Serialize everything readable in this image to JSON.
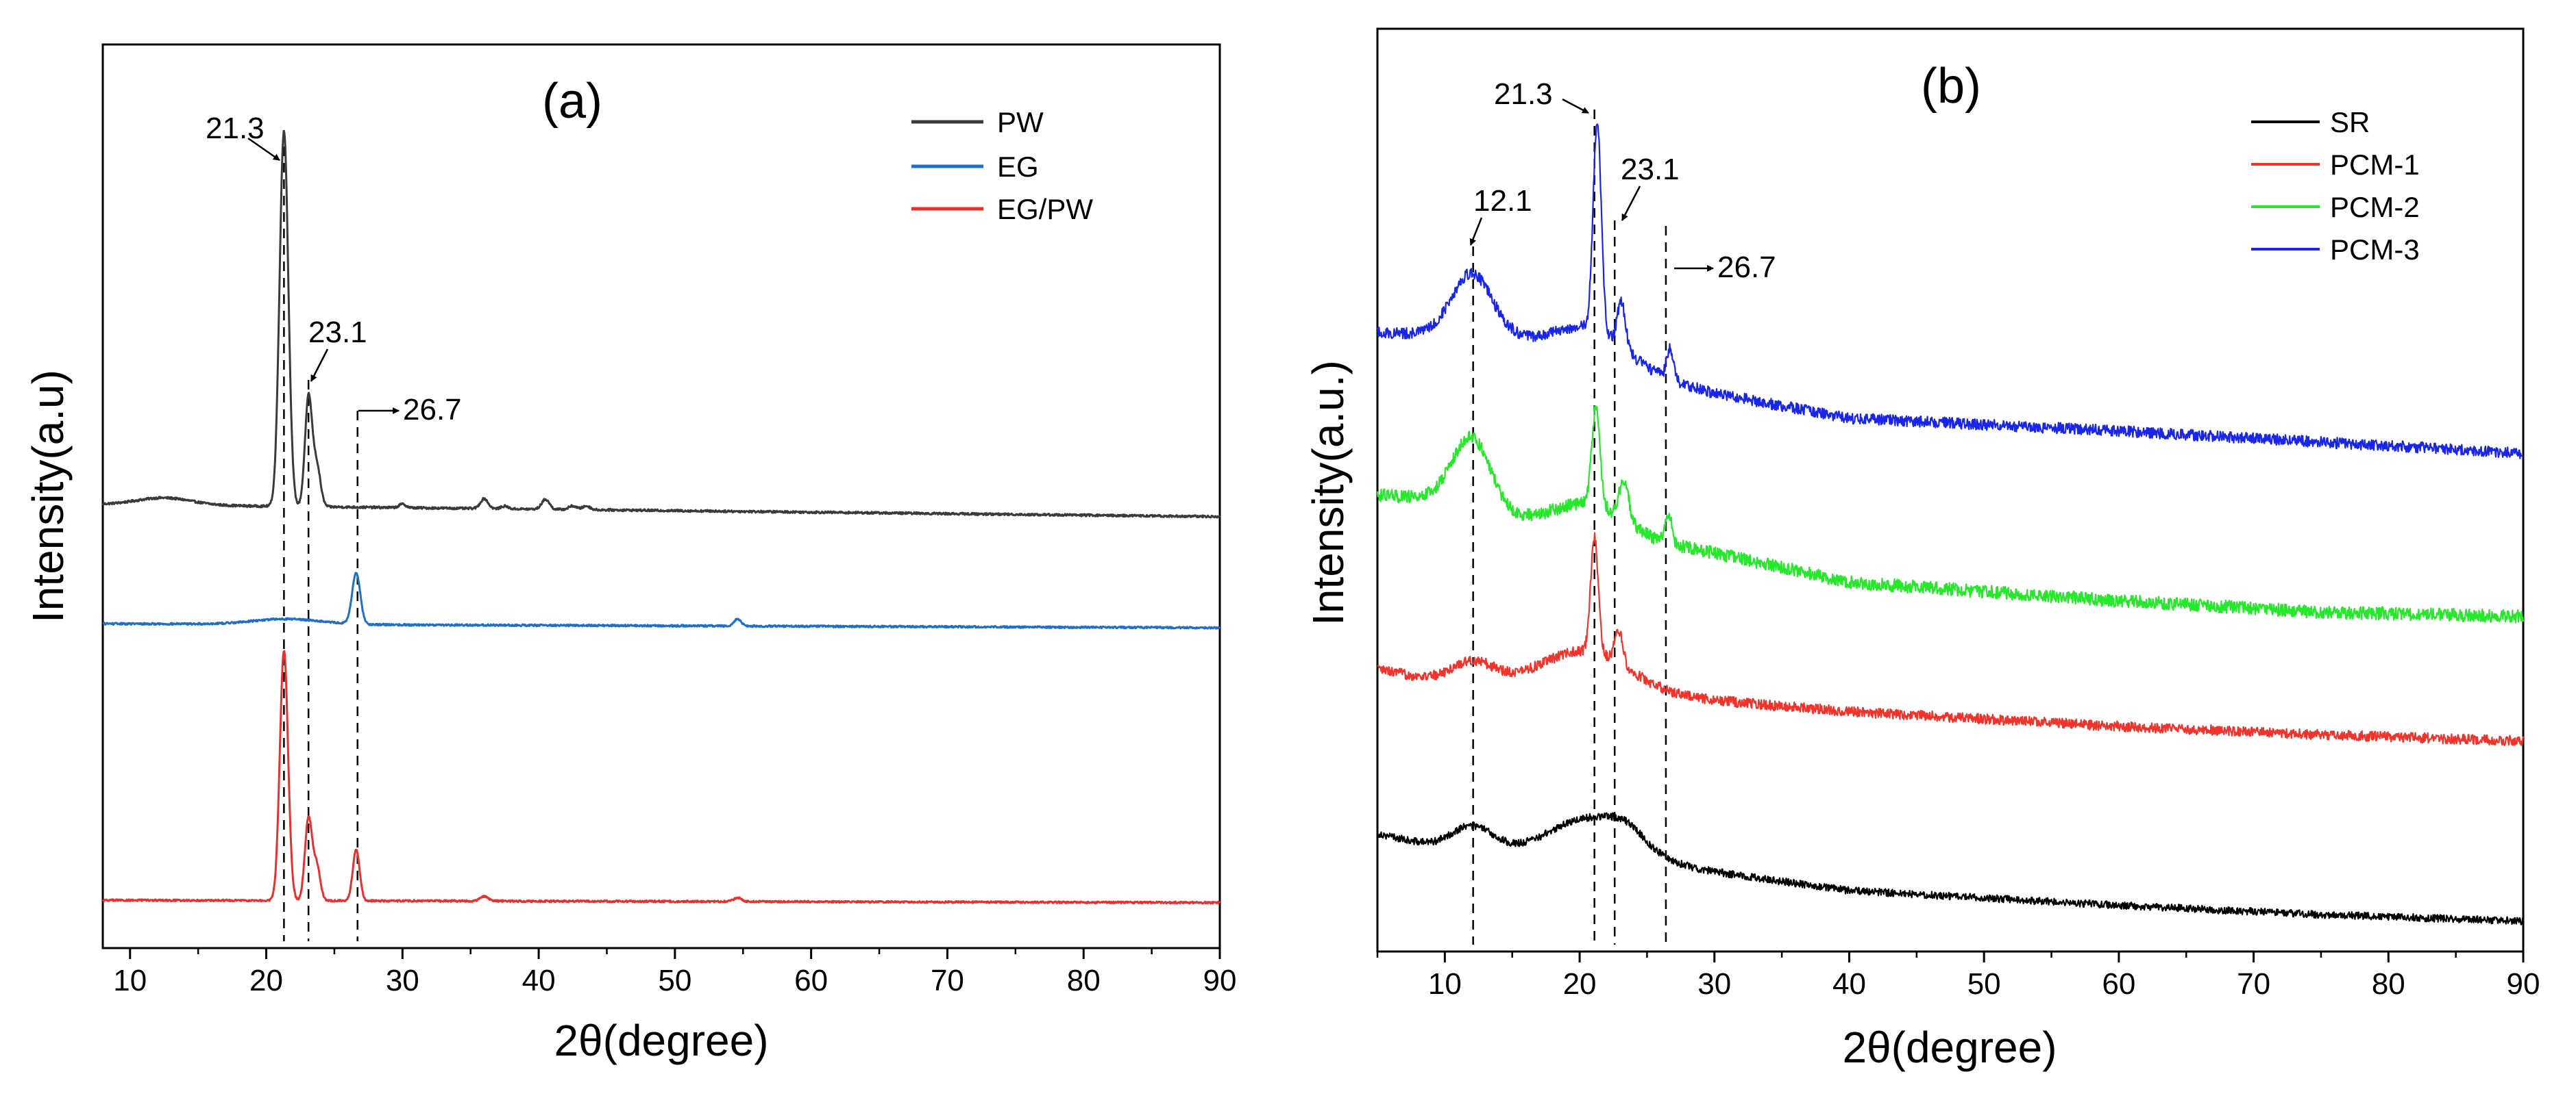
{
  "chart_data": [
    {
      "type": "line",
      "panel_label": "(a)",
      "xlabel": "2θ(degree)",
      "ylabel": "Intensity(a.u)",
      "xlim": [
        8,
        90
      ],
      "ylim": [
        0,
        100
      ],
      "x_ticks": [
        10,
        20,
        30,
        40,
        50,
        60,
        70,
        80,
        90
      ],
      "y_ticks_shown": false,
      "grid": false,
      "legend_position": "top-right",
      "series": [
        {
          "name": "PW",
          "color": "#3a3a3a",
          "baseline": 49.1,
          "slope": -0.0165,
          "noise": 0.12,
          "peaks": [
            {
              "x": 12.5,
              "h": 0.8,
              "w": 2.0
            },
            {
              "x": 21.3,
              "h": 41.6,
              "w": 0.32
            },
            {
              "x": 23.1,
              "h": 12.0,
              "w": 0.26
            },
            {
              "x": 23.7,
              "h": 4.5,
              "w": 0.28
            },
            {
              "x": 30.0,
              "h": 0.4,
              "w": 0.25
            },
            {
              "x": 36.0,
              "h": 1.1,
              "w": 0.28
            },
            {
              "x": 37.5,
              "h": 0.3,
              "w": 0.25
            },
            {
              "x": 40.5,
              "h": 1.1,
              "w": 0.28
            },
            {
              "x": 42.5,
              "h": 0.4,
              "w": 0.28
            },
            {
              "x": 43.5,
              "h": 0.4,
              "w": 0.28
            }
          ]
        },
        {
          "name": "EG",
          "color": "#1f6fc9",
          "baseline": 35.9,
          "slope": -0.0055,
          "noise": 0.1,
          "peaks": [
            {
              "x": 21.5,
              "h": 0.6,
              "w": 2.5
            },
            {
              "x": 26.6,
              "h": 5.6,
              "w": 0.3
            },
            {
              "x": 54.6,
              "h": 0.8,
              "w": 0.25
            }
          ]
        },
        {
          "name": "EG/PW",
          "color": "#e8302e",
          "baseline": 5.3,
          "slope": -0.0033,
          "noise": 0.1,
          "peaks": [
            {
              "x": 21.3,
              "h": 27.7,
              "w": 0.3
            },
            {
              "x": 23.1,
              "h": 9.1,
              "w": 0.26
            },
            {
              "x": 23.7,
              "h": 3.8,
              "w": 0.26
            },
            {
              "x": 26.6,
              "h": 5.7,
              "w": 0.25
            },
            {
              "x": 36.0,
              "h": 0.5,
              "w": 0.3
            },
            {
              "x": 54.6,
              "h": 0.4,
              "w": 0.3
            }
          ]
        }
      ],
      "annotations": [
        {
          "text": "21.3",
          "x": 21.3
        },
        {
          "text": "23.1",
          "x": 23.1
        },
        {
          "text": "26.7",
          "x": 26.7
        }
      ]
    },
    {
      "type": "line",
      "panel_label": "(b)",
      "xlabel": "2θ(degree)",
      "ylabel": "Intensity(a.u.)",
      "xlim": [
        5,
        90
      ],
      "ylim": [
        0,
        100
      ],
      "x_ticks": [
        10,
        20,
        30,
        40,
        50,
        60,
        70,
        80,
        90
      ],
      "y_ticks_shown": false,
      "grid": false,
      "legend_position": "top-right",
      "series": [
        {
          "name": "SR",
          "color": "#000000",
          "base_points": [
            [
              5,
              12.8
            ],
            [
              10,
              11.1
            ],
            [
              15,
              10.5
            ],
            [
              30,
              8.6
            ],
            [
              40,
              6.6
            ],
            [
              60,
              5.0
            ],
            [
              75,
              4.0
            ],
            [
              90,
              3.3
            ]
          ],
          "noise": 0.4,
          "peaks": [
            {
              "x": 12.0,
              "h": 2.7,
              "w": 1.6
            },
            {
              "x": 21.0,
              "h": 4.7,
              "w": 3.2
            },
            {
              "x": 23.5,
              "h": 1.2,
              "w": 1.2
            }
          ]
        },
        {
          "name": "PCM-1",
          "color": "#f0342c",
          "base_points": [
            [
              5,
              30.6
            ],
            [
              10,
              29.2
            ],
            [
              15,
              29.0
            ],
            [
              30,
              27.2
            ],
            [
              40,
              26.0
            ],
            [
              60,
              24.4
            ],
            [
              75,
              23.5
            ],
            [
              90,
              22.8
            ]
          ],
          "noise": 0.55,
          "peaks": [
            {
              "x": 12.0,
              "h": 2.3,
              "w": 1.6
            },
            {
              "x": 20.5,
              "h": 4.2,
              "w": 3.2
            },
            {
              "x": 21.1,
              "h": 12.5,
              "w": 0.28
            },
            {
              "x": 22.9,
              "h": 3.6,
              "w": 0.3
            }
          ]
        },
        {
          "name": "PCM-2",
          "color": "#25e82a",
          "base_points": [
            [
              5,
              49.5
            ],
            [
              10,
              49.0
            ],
            [
              15,
              47.0
            ],
            [
              30,
              43.2
            ],
            [
              40,
              40.0
            ],
            [
              60,
              38.0
            ],
            [
              75,
              36.8
            ],
            [
              90,
              36.3
            ]
          ],
          "noise": 0.7,
          "peaks": [
            {
              "x": 12.0,
              "h": 7.5,
              "w": 1.4
            },
            {
              "x": 20.8,
              "h": 3.0,
              "w": 2.5
            },
            {
              "x": 21.2,
              "h": 10.5,
              "w": 0.3
            },
            {
              "x": 23.3,
              "h": 4.5,
              "w": 0.35
            },
            {
              "x": 26.6,
              "h": 3.0,
              "w": 0.25
            }
          ]
        },
        {
          "name": "PCM-3",
          "color": "#1a25ea",
          "base_points": [
            [
              5,
              67.1
            ],
            [
              10,
              66.8
            ],
            [
              15,
              66.3
            ],
            [
              30,
              60.5
            ],
            [
              40,
              57.8
            ],
            [
              60,
              56.4
            ],
            [
              75,
              55.2
            ],
            [
              90,
              54.0
            ]
          ],
          "noise": 0.6,
          "peaks": [
            {
              "x": 12.0,
              "h": 6.9,
              "w": 1.5
            },
            {
              "x": 20.8,
              "h": 3.5,
              "w": 2.6
            },
            {
              "x": 21.3,
              "h": 22.6,
              "w": 0.3
            },
            {
              "x": 23.1,
              "h": 4.9,
              "w": 0.3
            },
            {
              "x": 26.7,
              "h": 3.3,
              "w": 0.25
            }
          ]
        }
      ],
      "annotations": [
        {
          "text": "12.1",
          "x": 12.1
        },
        {
          "text": "21.3",
          "x": 21.3
        },
        {
          "text": "23.1",
          "x": 23.1
        },
        {
          "text": "26.7",
          "x": 26.7
        }
      ]
    }
  ]
}
